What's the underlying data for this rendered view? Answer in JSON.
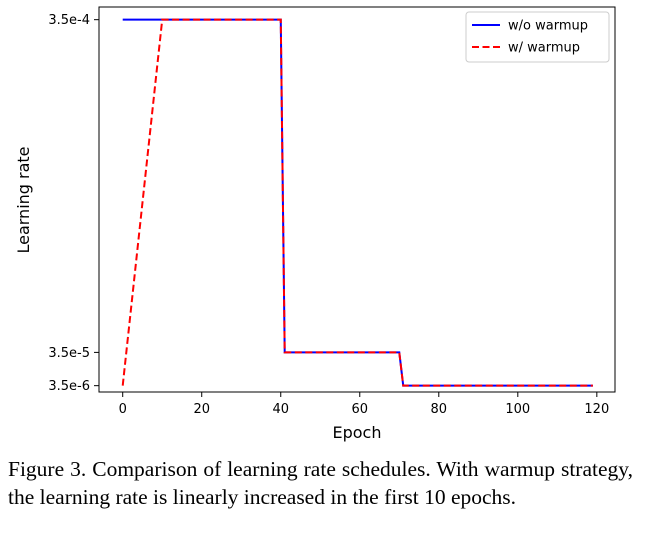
{
  "chart_data": {
    "type": "line",
    "xlabel": "Epoch",
    "ylabel": "Learning rate",
    "x_ticks": [
      0,
      20,
      40,
      60,
      80,
      100,
      120
    ],
    "y_ticks": [
      {
        "value": 0.00035,
        "label": "3.5e-4"
      },
      {
        "value": 3.5e-05,
        "label": "3.5e-5"
      },
      {
        "value": 3.5e-06,
        "label": "3.5e-6"
      }
    ],
    "xlim": [
      -6,
      124.6
    ],
    "ylim": [
      -2.5e-06,
      0.000362
    ],
    "grid": false,
    "legend_position": "top-right",
    "series": [
      {
        "name": "w/o warmup",
        "color": "#0000ff",
        "style": "solid",
        "points": [
          [
            0,
            0.00035
          ],
          [
            40,
            0.00035
          ],
          [
            41,
            3.5e-05
          ],
          [
            70,
            3.5e-05
          ],
          [
            71,
            3.5e-06
          ],
          [
            119,
            3.5e-06
          ]
        ]
      },
      {
        "name": "w/ warmup",
        "color": "#ff0000",
        "style": "dashed",
        "points": [
          [
            0,
            3.5e-06
          ],
          [
            10,
            0.00035
          ],
          [
            40,
            0.00035
          ],
          [
            41,
            3.5e-05
          ],
          [
            70,
            3.5e-05
          ],
          [
            71,
            3.5e-06
          ],
          [
            119,
            3.5e-06
          ]
        ]
      }
    ]
  },
  "caption": "Figure 3. Comparison of learning rate schedules. With warmup strategy, the learning rate is linearly increased in the first 10 epochs."
}
